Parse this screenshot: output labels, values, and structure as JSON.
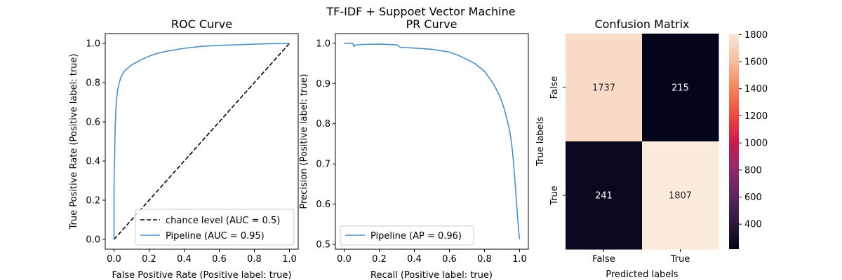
{
  "suptitle": "TF-IDF + Suppoet Vector Machine",
  "chart_data": [
    {
      "type": "line",
      "title": "ROC Curve",
      "xlabel": "False Positive Rate (Positive label: true)",
      "ylabel": "True Positive Rate (Positive label: true)",
      "xlim": [
        -0.05,
        1.05
      ],
      "ylim": [
        -0.05,
        1.05
      ],
      "xticks": [
        "0.0",
        "0.2",
        "0.4",
        "0.6",
        "0.8",
        "1.0"
      ],
      "yticks": [
        "0.0",
        "0.2",
        "0.4",
        "0.6",
        "0.8",
        "1.0"
      ],
      "legend_position": "lower-right",
      "series": [
        {
          "name": "chance level (AUC = 0.5)",
          "color": "#000000",
          "style": "dashed",
          "x": [
            0.0,
            1.0
          ],
          "y": [
            0.0,
            1.0
          ]
        },
        {
          "name": "Pipeline (AUC = 0.95)",
          "color": "#4c8dc4",
          "style": "solid",
          "x": [
            0.0,
            0.0,
            0.003,
            0.006,
            0.01,
            0.015,
            0.02,
            0.03,
            0.04,
            0.05,
            0.06,
            0.08,
            0.1,
            0.12,
            0.15,
            0.2,
            0.25,
            0.3,
            0.4,
            0.5,
            0.6,
            0.7,
            0.8,
            0.9,
            1.0
          ],
          "y": [
            0.0,
            0.28,
            0.4,
            0.55,
            0.65,
            0.72,
            0.76,
            0.8,
            0.83,
            0.845,
            0.86,
            0.875,
            0.89,
            0.9,
            0.915,
            0.935,
            0.95,
            0.96,
            0.975,
            0.985,
            0.99,
            0.993,
            0.996,
            0.999,
            1.0
          ]
        }
      ]
    },
    {
      "type": "line",
      "title": "PR Curve",
      "xlabel": "Recall (Positive label: true)",
      "ylabel": "Precision (Positive label: true)",
      "xlim": [
        -0.05,
        1.05
      ],
      "ylim": [
        0.488,
        1.024
      ],
      "xticks": [
        "0.0",
        "0.2",
        "0.4",
        "0.6",
        "0.8",
        "1.0"
      ],
      "yticks": [
        "0.5",
        "0.6",
        "0.7",
        "0.8",
        "0.9",
        "1.0"
      ],
      "legend_position": "lower-left",
      "series": [
        {
          "name": "Pipeline (AP = 0.96)",
          "color": "#4c8dc4",
          "style": "solid",
          "x": [
            0.0,
            0.05,
            0.055,
            0.06,
            0.1,
            0.2,
            0.3,
            0.32,
            0.4,
            0.5,
            0.6,
            0.65,
            0.7,
            0.75,
            0.8,
            0.85,
            0.88,
            0.9,
            0.92,
            0.94,
            0.95,
            0.96,
            0.97,
            0.98,
            0.99,
            0.995,
            1.0
          ],
          "y": [
            1.0,
            1.0,
            0.992,
            0.995,
            0.997,
            0.998,
            0.996,
            0.99,
            0.988,
            0.985,
            0.978,
            0.97,
            0.96,
            0.948,
            0.93,
            0.9,
            0.875,
            0.855,
            0.825,
            0.79,
            0.765,
            0.73,
            0.68,
            0.62,
            0.56,
            0.53,
            0.513
          ]
        }
      ]
    },
    {
      "type": "heatmap",
      "title": "Confusion Matrix",
      "xlabel": "Predicted labels",
      "ylabel": "True labels",
      "xcategories": [
        "False",
        "True"
      ],
      "ycategories": [
        "False",
        "True"
      ],
      "values": [
        [
          1737,
          215
        ],
        [
          241,
          1807
        ]
      ],
      "vmin": 215,
      "vmax": 1807,
      "colorbar_ticks": [
        "1800",
        "1600",
        "1400",
        "1200",
        "1000",
        "800",
        "600",
        "400"
      ]
    }
  ]
}
